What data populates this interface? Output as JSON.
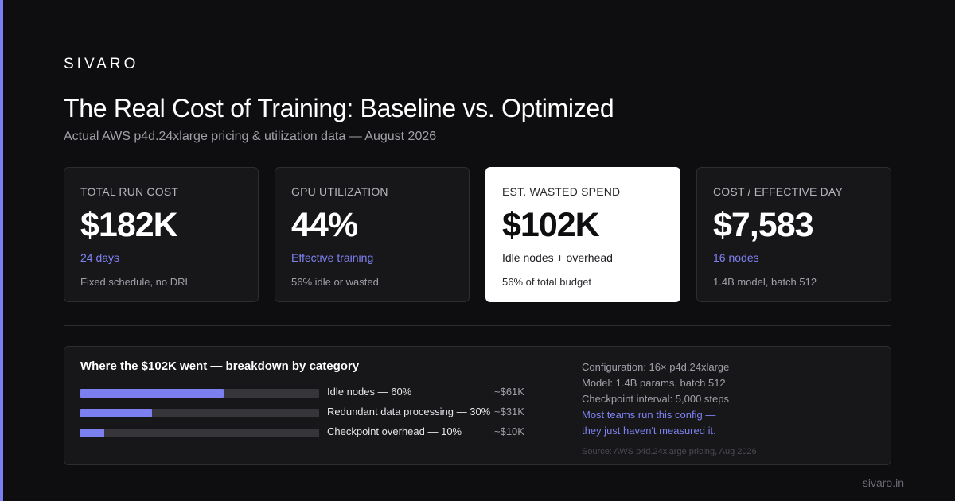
{
  "brand": "SIVARO",
  "title": "The Real Cost of Training: Baseline vs. Optimized",
  "subtitle": "Actual AWS p4d.24xlarge pricing & utilization data — August 2026",
  "accent_color": "#7b7ff0",
  "cards": [
    {
      "label": "TOTAL RUN COST",
      "value": "$182K",
      "sub": "24 days",
      "foot": "Fixed schedule, no DRL"
    },
    {
      "label": "GPU UTILIZATION",
      "value": "44%",
      "sub": "Effective training",
      "foot": "56% idle or wasted"
    },
    {
      "label": "EST. WASTED SPEND",
      "value": "$102K",
      "sub": "Idle nodes + overhead",
      "foot": "56% of total budget"
    },
    {
      "label": "COST / EFFECTIVE DAY",
      "value": "$7,583",
      "sub": "16 nodes",
      "foot": "1.4B model, batch 512"
    }
  ],
  "breakdown": {
    "title": "Where the $102K went — breakdown by category",
    "items": [
      {
        "label": "Idle nodes — 60%",
        "amount": "~$61K",
        "fraction": 0.6
      },
      {
        "label": "Redundant data processing — 30%",
        "amount": "~$31K",
        "fraction": 0.3
      },
      {
        "label": "Checkpoint overhead — 10%",
        "amount": "~$10K",
        "fraction": 0.1
      }
    ]
  },
  "info": {
    "config": "Configuration: 16× p4d.24xlarge",
    "model": "Model: 1.4B params, batch 512",
    "checkpoint": "Checkpoint interval: 5,000 steps",
    "note_1": "Most teams run this config —",
    "note_2": "they just haven't measured it.",
    "source": "Source: AWS p4d.24xlarge pricing, Aug 2026"
  },
  "footer_domain": "sivaro.in"
}
